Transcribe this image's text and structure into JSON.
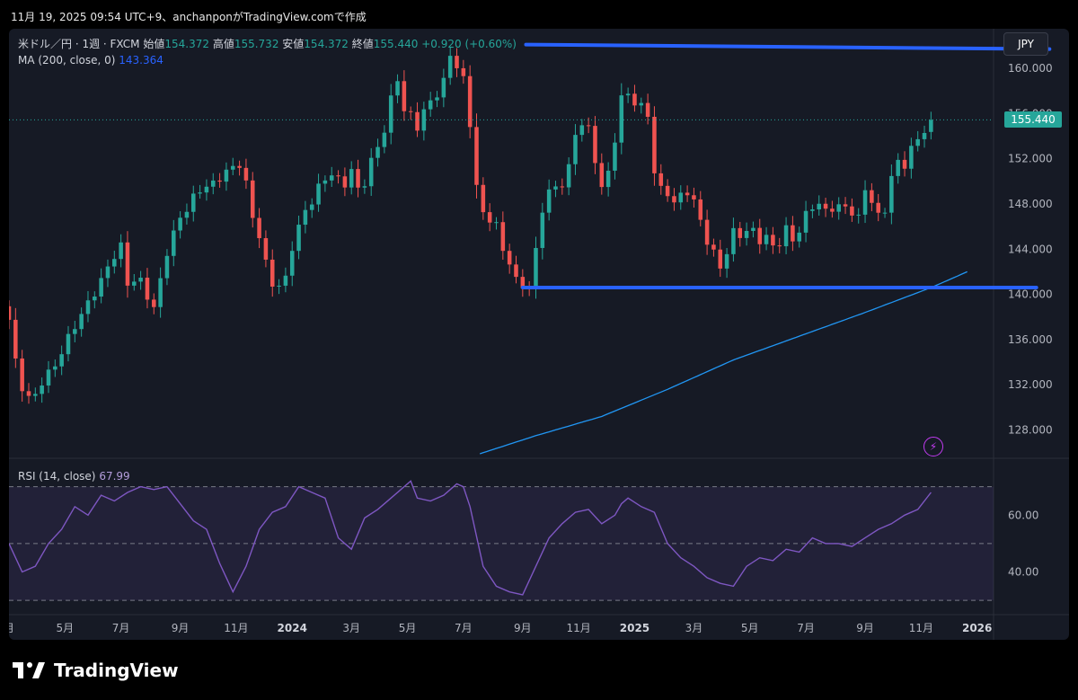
{
  "header": {
    "caption": "11月 19, 2025 09:54 UTC+9、anchanponがTradingView.comで作成"
  },
  "legend": {
    "symbol": "米ドル／円 · 1週 · FXCM",
    "open_label": "始値",
    "open": "154.372",
    "high_label": "高値",
    "high": "155.732",
    "low_label": "安値",
    "low": "154.372",
    "close_label": "終値",
    "close": "155.440",
    "change": "+0.920 (+0.60%)",
    "ma_label": "MA (200, close, 0)",
    "ma_value": "143.364"
  },
  "currency_button": "JPY",
  "last_price_tag": "155.440",
  "rsi_legend": {
    "label": "RSI (14, close)",
    "value": "67.99"
  },
  "brand": "TradingView",
  "colors": {
    "up": "#26a69a",
    "down": "#ef5350",
    "ma": "#2196f3",
    "trendline": "#2962ff",
    "rsi": "#7e57c2",
    "background": "#161a25"
  },
  "chart_data": [
    {
      "type": "candlestick",
      "title": "米ドル／円 · 1週 · FXCM",
      "ylim": [
        125.5,
        163.5
      ],
      "y_ticks": [
        "128.000",
        "132.000",
        "136.000",
        "140.000",
        "144.000",
        "148.000",
        "152.000",
        "156.000",
        "160.000"
      ],
      "x_ticks": [
        "月",
        "5月",
        "7月",
        "9月",
        "11月",
        "2024",
        "3月",
        "5月",
        "7月",
        "9月",
        "11月",
        "2025",
        "3月",
        "5月",
        "7月",
        "9月",
        "11月",
        "2026"
      ],
      "x_tick_positions": [
        0,
        8.5,
        17,
        26,
        34.5,
        43,
        52,
        60.5,
        69,
        78,
        86.5,
        95,
        104,
        112.5,
        121,
        130,
        138.5,
        147
      ],
      "x_range": [
        0,
        149.5
      ],
      "close_key_points": [
        [
          0,
          137.5
        ],
        [
          1,
          134
        ],
        [
          2,
          132
        ],
        [
          3,
          131
        ],
        [
          4,
          131
        ],
        [
          6,
          133
        ],
        [
          8,
          135
        ],
        [
          10,
          137
        ],
        [
          12,
          139.5
        ],
        [
          14,
          141
        ],
        [
          16,
          143.5
        ],
        [
          17,
          144.5
        ],
        [
          18,
          141
        ],
        [
          19,
          141
        ],
        [
          20,
          141
        ],
        [
          21,
          140
        ],
        [
          22,
          139
        ],
        [
          24,
          143.5
        ],
        [
          26,
          147
        ],
        [
          28,
          148.5
        ],
        [
          30,
          149.5
        ],
        [
          32,
          150.5
        ],
        [
          34,
          151
        ],
        [
          35,
          151.5
        ],
        [
          36,
          150
        ],
        [
          37,
          147
        ],
        [
          38,
          145
        ],
        [
          39,
          142.5
        ],
        [
          40,
          141
        ],
        [
          41,
          141
        ],
        [
          42,
          141.5
        ],
        [
          43,
          144
        ],
        [
          45,
          147.5
        ],
        [
          47,
          149.5
        ],
        [
          49,
          150.5
        ],
        [
          51,
          150
        ],
        [
          52,
          151
        ],
        [
          53,
          149
        ],
        [
          54,
          149.8
        ],
        [
          55,
          152
        ],
        [
          57,
          154.5
        ],
        [
          58,
          157
        ],
        [
          59,
          159
        ],
        [
          60,
          156.5
        ],
        [
          61,
          156
        ],
        [
          62,
          154.7
        ],
        [
          63,
          156
        ],
        [
          64,
          157
        ],
        [
          65,
          158
        ],
        [
          66,
          159
        ],
        [
          67,
          161
        ],
        [
          68,
          160
        ],
        [
          69,
          159
        ],
        [
          70,
          155.3
        ],
        [
          71,
          149.8
        ],
        [
          72,
          146.8
        ],
        [
          73,
          146.5
        ],
        [
          74,
          146.3
        ],
        [
          75,
          144
        ],
        [
          76,
          143
        ],
        [
          77,
          141
        ],
        [
          78,
          140.5
        ],
        [
          79,
          140.8
        ],
        [
          80,
          144
        ],
        [
          81,
          147.5
        ],
        [
          82,
          149
        ],
        [
          83,
          149.2
        ],
        [
          84,
          150
        ],
        [
          85,
          151.5
        ],
        [
          86,
          154
        ],
        [
          87,
          155
        ],
        [
          88,
          154.5
        ],
        [
          89,
          152
        ],
        [
          90,
          149.8
        ],
        [
          91,
          150.5
        ],
        [
          92,
          153.5
        ],
        [
          93,
          157.5
        ],
        [
          94,
          157.8
        ],
        [
          95,
          157.2
        ],
        [
          96,
          156.5
        ],
        [
          97,
          155.5
        ],
        [
          98,
          151
        ],
        [
          99,
          149.5
        ],
        [
          100,
          149
        ],
        [
          101,
          148
        ],
        [
          102,
          148.5
        ],
        [
          103,
          149.2
        ],
        [
          104,
          148.5
        ],
        [
          105,
          146.5
        ],
        [
          106,
          144.5
        ],
        [
          107,
          143.5
        ],
        [
          108,
          142.5
        ],
        [
          109,
          144
        ],
        [
          110,
          145.5
        ],
        [
          111,
          145
        ],
        [
          112,
          145.5
        ],
        [
          113,
          145.8
        ],
        [
          114,
          145
        ],
        [
          115,
          145
        ],
        [
          116,
          144
        ],
        [
          117,
          144.5
        ],
        [
          118,
          146
        ],
        [
          119,
          145
        ],
        [
          120,
          145.5
        ],
        [
          121,
          146.8
        ],
        [
          122,
          147.8
        ],
        [
          123,
          148.2
        ],
        [
          124,
          147.5
        ],
        [
          125,
          147.5
        ],
        [
          126,
          147.5
        ],
        [
          127,
          147.8
        ],
        [
          128,
          147.5
        ],
        [
          129,
          146.8
        ],
        [
          130,
          149.2
        ],
        [
          131,
          148
        ],
        [
          132,
          147
        ],
        [
          133,
          147.8
        ],
        [
          134,
          150.4
        ],
        [
          135,
          151.5
        ],
        [
          136,
          151.3
        ],
        [
          137,
          153
        ],
        [
          138,
          154
        ],
        [
          139,
          154.5
        ],
        [
          140,
          155.44
        ]
      ],
      "ma_key_points": [
        [
          71.5,
          125.9
        ],
        [
          80,
          127.5
        ],
        [
          90,
          129.2
        ],
        [
          100,
          131.6
        ],
        [
          110,
          134.2
        ],
        [
          120,
          136.3
        ],
        [
          130,
          138.4
        ],
        [
          140,
          140.6
        ],
        [
          145.5,
          142
        ]
      ],
      "annotations": [
        {
          "type": "trendline",
          "from": [
            78,
            140.6
          ],
          "to": [
            156,
            140.6
          ],
          "note": "support"
        },
        {
          "type": "trendline",
          "from": [
            78.5,
            162.1
          ],
          "to": [
            158,
            161.7
          ],
          "note": "resistance"
        }
      ]
    },
    {
      "type": "line",
      "title": "RSI (14, close)",
      "ylim": [
        25,
        80
      ],
      "y_ticks": [
        "40.00",
        "60.00"
      ],
      "bands": [
        70,
        50,
        30
      ],
      "x_range": [
        0,
        149.5
      ],
      "points": [
        [
          0,
          50
        ],
        [
          2,
          40
        ],
        [
          4,
          42
        ],
        [
          6,
          50
        ],
        [
          8,
          55
        ],
        [
          10,
          63
        ],
        [
          12,
          60
        ],
        [
          14,
          67
        ],
        [
          16,
          65
        ],
        [
          18,
          68
        ],
        [
          20,
          70
        ],
        [
          22,
          69
        ],
        [
          24,
          70
        ],
        [
          26,
          64
        ],
        [
          28,
          58
        ],
        [
          30,
          55
        ],
        [
          32,
          43
        ],
        [
          34,
          33
        ],
        [
          36,
          42
        ],
        [
          38,
          55
        ],
        [
          40,
          61
        ],
        [
          42,
          63
        ],
        [
          44,
          70
        ],
        [
          46,
          68
        ],
        [
          48,
          66
        ],
        [
          50,
          52
        ],
        [
          52,
          48
        ],
        [
          54,
          59
        ],
        [
          56,
          62
        ],
        [
          58,
          66
        ],
        [
          60,
          70
        ],
        [
          61,
          72
        ],
        [
          62,
          66
        ],
        [
          64,
          65
        ],
        [
          66,
          67
        ],
        [
          68,
          71
        ],
        [
          69,
          70
        ],
        [
          70,
          63
        ],
        [
          72,
          42
        ],
        [
          74,
          35
        ],
        [
          76,
          33
        ],
        [
          78,
          32
        ],
        [
          80,
          42
        ],
        [
          82,
          52
        ],
        [
          84,
          57
        ],
        [
          86,
          61
        ],
        [
          88,
          62
        ],
        [
          90,
          57
        ],
        [
          92,
          60
        ],
        [
          93,
          64
        ],
        [
          94,
          66
        ],
        [
          96,
          63
        ],
        [
          98,
          61
        ],
        [
          100,
          50
        ],
        [
          102,
          45
        ],
        [
          104,
          42
        ],
        [
          106,
          38
        ],
        [
          108,
          36
        ],
        [
          110,
          35
        ],
        [
          112,
          42
        ],
        [
          114,
          45
        ],
        [
          116,
          44
        ],
        [
          118,
          48
        ],
        [
          120,
          47
        ],
        [
          122,
          52
        ],
        [
          124,
          50
        ],
        [
          126,
          50
        ],
        [
          128,
          49
        ],
        [
          130,
          52
        ],
        [
          132,
          55
        ],
        [
          134,
          57
        ],
        [
          136,
          60
        ],
        [
          138,
          62
        ],
        [
          140,
          67.99
        ]
      ]
    }
  ]
}
